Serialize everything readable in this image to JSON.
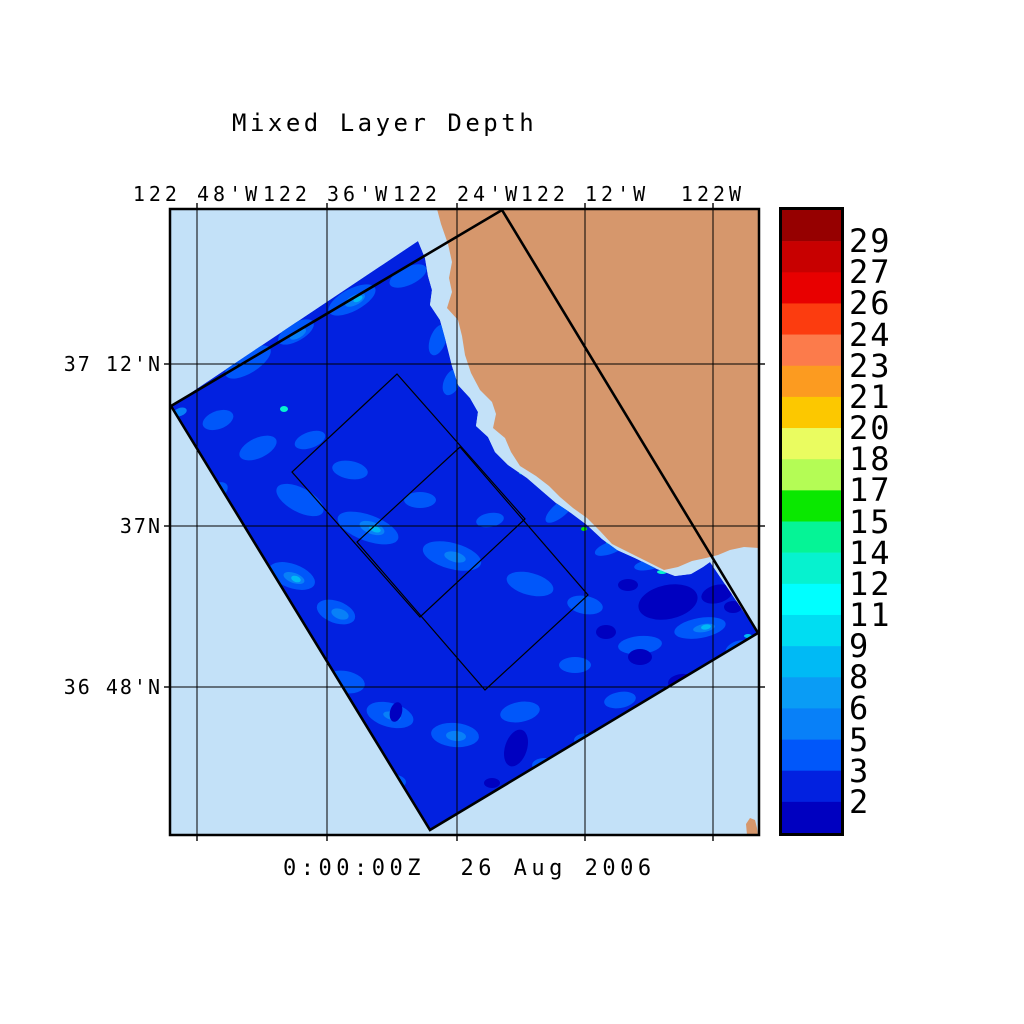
{
  "title": "Mixed Layer Depth",
  "time_caption": "0:00:00Z  26 Aug 2006",
  "axes": {
    "top_labels": [
      "122 48'W",
      "122 36'W",
      "122 24'W",
      "122 12'W",
      "122W"
    ],
    "left_labels": [
      "37 12'N",
      "37N",
      "36 48'N"
    ]
  },
  "colorbar": {
    "tick_labels": [
      "29",
      "27",
      "26",
      "24",
      "23",
      "21",
      "20",
      "18",
      "17",
      "15",
      "14",
      "12",
      "11",
      "9",
      "8",
      "6",
      "5",
      "3",
      "2"
    ],
    "segment_colors_top_to_bottom": [
      "#960000",
      "#c80000",
      "#e80000",
      "#fc3c0f",
      "#fc7b4b",
      "#fc9b20",
      "#fcc800",
      "#eafc60",
      "#b4fc55",
      "#0ae800",
      "#05f496",
      "#06f2cf",
      "#00ffff",
      "#00ddf2",
      "#00baf5",
      "#0a9cf5",
      "#0880f8",
      "#0057fa",
      "#0221e0",
      "#0000c0"
    ]
  },
  "palette": {
    "background": "#ffffff",
    "ocean": "#c3e1f8",
    "land": "#d6976c",
    "outline": "#000000",
    "mld_base": "#0221e0",
    "mld_3_5": "#0057fa",
    "mld_5_6": "#0880f8",
    "mld_8_9": "#00baf5",
    "mld_cyan": "#06f2cf",
    "mld_green": "#0ae800",
    "mld_under2": "#0000c0"
  },
  "chart_data": {
    "type": "heatmap",
    "subtype": "filled_contour_map",
    "title": "Mixed Layer Depth",
    "time_label": "0:00:00Z  26 Aug 2006",
    "x_tick_labels": [
      "122 48'W",
      "122 36'W",
      "122 24'W",
      "122 12'W",
      "122W"
    ],
    "y_tick_labels": [
      "37 12'N",
      "37N",
      "36 48'N"
    ],
    "colorbar_tick_labels": [
      29,
      27,
      26,
      24,
      23,
      21,
      20,
      18,
      17,
      15,
      14,
      12,
      11,
      9,
      8,
      6,
      5,
      3,
      2
    ],
    "colorbar_colors_top_to_bottom": [
      "#960000",
      "#c80000",
      "#e80000",
      "#fc3c0f",
      "#fc7b4b",
      "#fc9b20",
      "#fcc800",
      "#eafc60",
      "#b4fc55",
      "#0ae800",
      "#05f496",
      "#06f2cf",
      "#00ffff",
      "#00ddf2",
      "#00baf5",
      "#0a9cf5",
      "#0880f8",
      "#0057fa",
      "#0221e0",
      "#0000c0"
    ],
    "legend_position": "right",
    "grid": true,
    "dominant_field_range": "most of the swath lies in the 2-8 band (blues), with patches below 2 (navy) near Monterey Bay"
  }
}
